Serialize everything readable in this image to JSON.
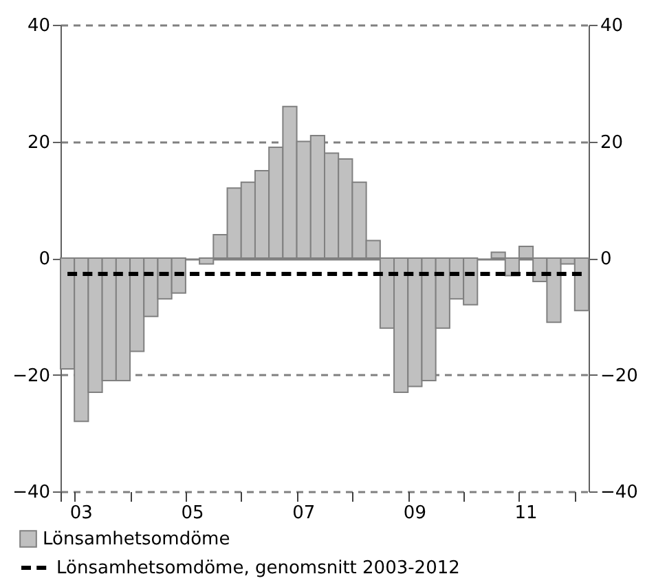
{
  "chart_data": {
    "type": "bar",
    "categories": [
      null,
      "03",
      null,
      null,
      null,
      null,
      null,
      null,
      null,
      "05",
      null,
      null,
      null,
      null,
      null,
      null,
      null,
      "07",
      null,
      null,
      null,
      null,
      null,
      null,
      null,
      "09",
      null,
      null,
      null,
      null,
      null,
      null,
      null,
      "11",
      null,
      null,
      null,
      null
    ],
    "ylim": [
      -40,
      40
    ],
    "yticks": [
      -40,
      -20,
      0,
      20,
      40
    ],
    "y2lim": [
      -40,
      40
    ],
    "y2ticks": [
      -40,
      -20,
      0,
      20,
      40
    ],
    "grid": "y",
    "legend": "bottom",
    "series": [
      {
        "name": "Lönsamhetsomdöme",
        "color": "#c0c0c0",
        "values": [
          -19,
          -28,
          -23,
          -21,
          -21,
          -16,
          -10,
          -7,
          -6,
          0,
          -1,
          4,
          12,
          13,
          15,
          19,
          26,
          20,
          21,
          18,
          17,
          13,
          3,
          -12,
          -23,
          -22,
          -21,
          -12,
          -7,
          -8,
          0,
          1,
          -3,
          2,
          -4,
          -11,
          -1,
          -9
        ]
      },
      {
        "name": "Lönsamhetsomdöme, genomsnitt 2003-2012",
        "type": "line",
        "color": "#000000",
        "line_style": "dashed",
        "values": [
          -2.7,
          -2.7,
          -2.7,
          -2.7,
          -2.7,
          -2.7,
          -2.7,
          -2.7,
          -2.7,
          -2.7,
          -2.7,
          -2.7,
          -2.7,
          -2.7,
          -2.7,
          -2.7,
          -2.7,
          -2.7,
          -2.7,
          -2.7,
          -2.7,
          -2.7,
          -2.7,
          -2.7,
          -2.7,
          -2.7,
          -2.7,
          -2.7,
          -2.7,
          -2.7,
          -2.7,
          -2.7,
          -2.7,
          -2.7,
          -2.7,
          -2.7,
          -2.7,
          -2.7
        ]
      }
    ]
  }
}
